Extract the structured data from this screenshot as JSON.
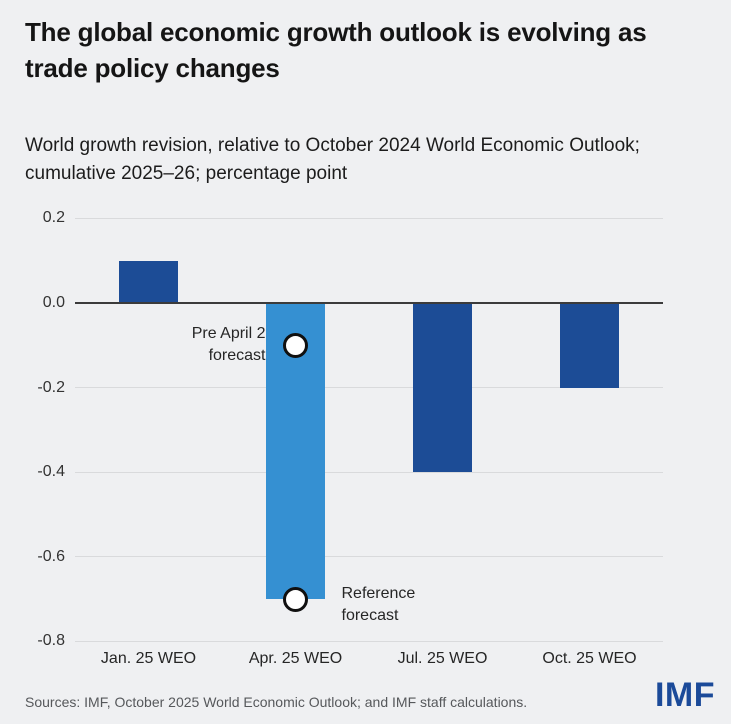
{
  "header": {
    "title": "The global economic growth outlook is evolving as trade policy changes",
    "subtitle": "World growth revision, relative to October 2024 World Economic Outlook; cumulative 2025–26; percentage point"
  },
  "chart_data": {
    "type": "bar",
    "categories": [
      "Jan. 25 WEO",
      "Apr. 25 WEO",
      "Jul. 25 WEO",
      "Oct. 25 WEO"
    ],
    "values": [
      0.1,
      -0.7,
      -0.4,
      -0.2
    ],
    "bar_colors": [
      "#1c4c96",
      "#3590d2",
      "#1c4c96",
      "#1c4c96"
    ],
    "title": "The global economic growth outlook is evolving as trade policy changes",
    "xlabel": "",
    "ylabel": "",
    "ylim": [
      -0.8,
      0.2
    ],
    "grid": true,
    "legend_position": "none",
    "yticks": [
      {
        "value": 0.2,
        "label": "0.2"
      },
      {
        "value": 0.0,
        "label": "0.0"
      },
      {
        "value": -0.2,
        "label": "-0.2"
      },
      {
        "value": -0.4,
        "label": "-0.4"
      },
      {
        "value": -0.6,
        "label": "-0.6"
      },
      {
        "value": -0.8,
        "label": "-0.8"
      }
    ],
    "markers": [
      {
        "name": "pre-april-2-forecast-marker",
        "category_index": 1,
        "value": -0.1,
        "label_lines": [
          "Pre April 2",
          "forecast"
        ],
        "label_side": "left"
      },
      {
        "name": "reference-forecast-marker",
        "category_index": 1,
        "value": -0.7,
        "label_lines": [
          "Reference",
          "forecast"
        ],
        "label_side": "right"
      }
    ]
  },
  "footer": {
    "sources": "Sources: IMF, October 2025 World Economic Outlook; and IMF staff calculations.",
    "logo": "IMF"
  },
  "colors": {
    "background": "#eff0f2",
    "dark_blue": "#1c4c96",
    "light_blue": "#3590d2",
    "gridline": "#d9dadc",
    "zero_line": "#3b3b3b",
    "marker_stroke": "#101010",
    "text_dark": "#151515",
    "text_gray": "#56585b",
    "logo_blue": "#1b4a99"
  }
}
